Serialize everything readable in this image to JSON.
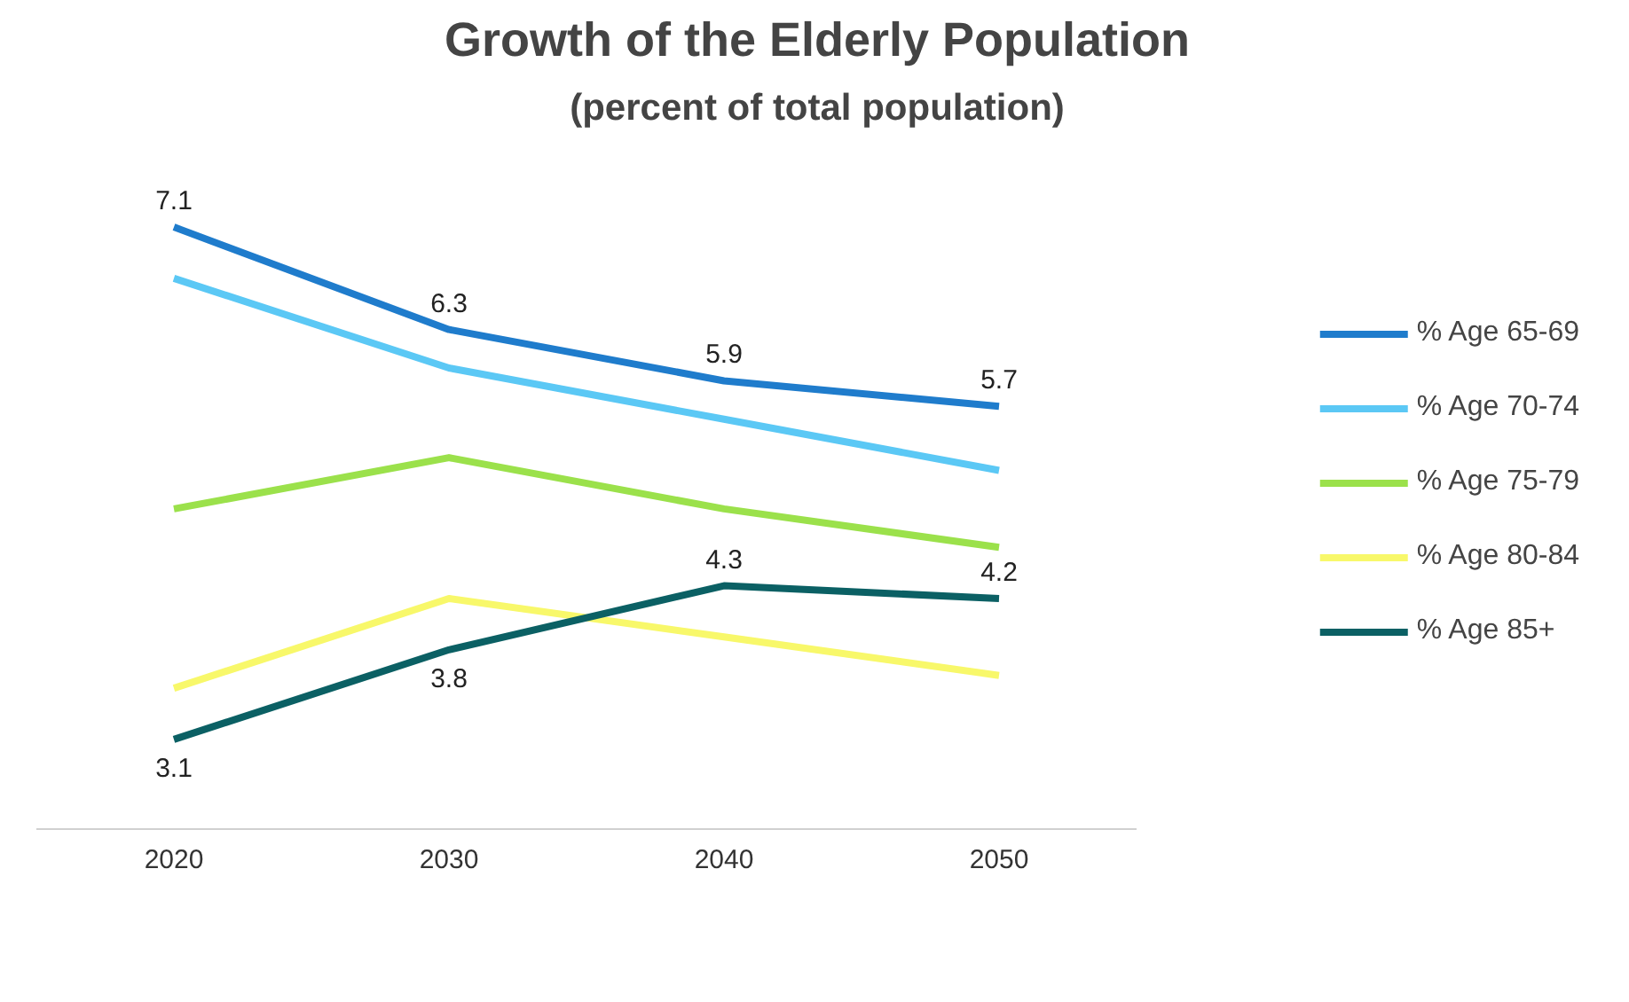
{
  "chart_data": {
    "type": "line",
    "title": "Growth of the Elderly Population",
    "subtitle": "(percent of total population)",
    "categories": [
      "2020",
      "2030",
      "2040",
      "2050"
    ],
    "tick_labels": "x",
    "grid": false,
    "legend": "right",
    "marker": "none",
    "line_style": "solid",
    "series": [
      {
        "name": "% Age 65-69",
        "color": "#1f7ccc",
        "values": [
          7.1,
          6.3,
          5.9,
          5.7
        ],
        "value_labels": [
          "7.1",
          "6.3",
          "5.9",
          "5.7"
        ]
      },
      {
        "name": "% Age 70-74",
        "color": "#5bc8f5",
        "values": [
          6.7,
          6.0,
          5.6,
          5.2
        ]
      },
      {
        "name": "% Age 75-79",
        "color": "#9be14b",
        "values": [
          4.9,
          5.3,
          4.9,
          4.6
        ]
      },
      {
        "name": "% Age 80-84",
        "color": "#f8f86a",
        "values": [
          3.5,
          4.2,
          3.9,
          3.6
        ]
      },
      {
        "name": "% Age 85+",
        "color": "#0b6064",
        "values": [
          3.1,
          3.8,
          4.3,
          4.2
        ],
        "value_labels": [
          "3.1",
          "3.8",
          "4.3",
          "4.2"
        ]
      }
    ]
  }
}
